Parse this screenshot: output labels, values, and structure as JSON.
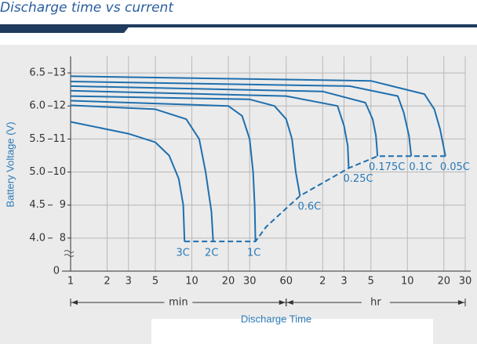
{
  "header": {
    "title": "Discharge time vs current"
  },
  "chart_data": {
    "type": "line",
    "xlabel": "Discharge Time",
    "ylabel": "Battery Voltage (V)",
    "x_scale": "log",
    "xlim": [
      1,
      1800
    ],
    "xticks": [
      1,
      2,
      3,
      5,
      10,
      20,
      30,
      60,
      {
        "value": 120,
        "label": "2"
      },
      {
        "value": 180,
        "label": "3"
      },
      {
        "value": 300,
        "label": "5"
      },
      {
        "value": 600,
        "label": "10"
      },
      {
        "value": 1200,
        "label": "20"
      },
      {
        "value": 1800,
        "label": "30"
      }
    ],
    "x_ranges": [
      {
        "label": "min",
        "from": 1,
        "to": 60
      },
      {
        "label": "hr",
        "from": 60,
        "to": 1800
      }
    ],
    "ylim": [
      3.5,
      6.75
    ],
    "yticks": [
      {
        "value": 4,
        "label": "4.0"
      },
      4.5,
      {
        "value": 5,
        "label": "5.0"
      },
      5.5,
      {
        "value": 6,
        "label": "6.0"
      },
      6.5
    ],
    "y2lim": [
      7,
      13.5
    ],
    "y2ticks": [
      8,
      9,
      10,
      11,
      12,
      13
    ],
    "y_break_label": "0",
    "grid": true,
    "color": "#1f6fae",
    "series": [
      {
        "name": "3C",
        "x": [
          1,
          3,
          5,
          6.5,
          7.8,
          8.5,
          8.7
        ],
        "values": [
          5.76,
          5.58,
          5.45,
          5.25,
          4.9,
          4.5,
          3.95
        ]
      },
      {
        "name": "2C",
        "x": [
          1,
          5,
          9,
          11.5,
          13,
          14.5,
          15
        ],
        "values": [
          6.01,
          5.95,
          5.8,
          5.5,
          5.0,
          4.4,
          3.95
        ]
      },
      {
        "name": "1C",
        "x": [
          1,
          20,
          26,
          30,
          32,
          33,
          33.5
        ],
        "values": [
          6.08,
          6.0,
          5.85,
          5.5,
          5.0,
          4.5,
          3.95
        ]
      },
      {
        "name": "0.6C",
        "x": [
          1,
          30,
          48,
          60,
          67,
          72,
          78
        ],
        "values": [
          6.15,
          6.1,
          6.0,
          5.8,
          5.5,
          5.0,
          4.64
        ]
      },
      {
        "name": "0.25C",
        "x": [
          1,
          60,
          159,
          180,
          193,
          197
        ],
        "values": [
          6.23,
          6.15,
          6.0,
          5.7,
          5.4,
          5.06
        ]
      },
      {
        "name": "0.175C",
        "x": [
          1,
          120,
          270,
          310,
          330,
          340
        ],
        "values": [
          6.3,
          6.22,
          6.05,
          5.8,
          5.55,
          5.24
        ]
      },
      {
        "name": "0.1C",
        "x": [
          1,
          200,
          500,
          560,
          618,
          646
        ],
        "values": [
          6.37,
          6.3,
          6.15,
          5.9,
          5.55,
          5.24
        ]
      },
      {
        "name": "0.05C",
        "x": [
          1,
          300,
          829,
          1000,
          1115,
          1237
        ],
        "values": [
          6.45,
          6.38,
          6.18,
          5.95,
          5.65,
          5.24
        ]
      }
    ],
    "cutoff_line": {
      "x": [
        8.7,
        33.5,
        41,
        60,
        78,
        197,
        340,
        646,
        1237
      ],
      "values": [
        3.95,
        3.95,
        4.17,
        4.45,
        4.64,
        5.06,
        5.24,
        5.24,
        5.24
      ]
    }
  }
}
